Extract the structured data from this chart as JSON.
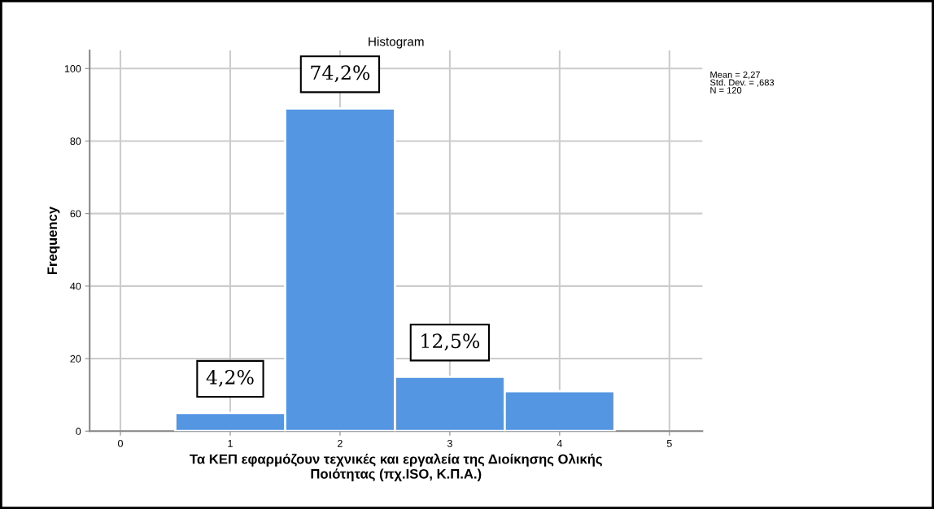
{
  "chart_data": {
    "type": "histogram",
    "title": "Histogram",
    "xlabel": "Τα ΚΕΠ εφαρμόζουν τεχνικές και εργαλεία της Διοίκησης Ολικής\nΠοιότητας (πχ.ISO, Κ.Π.Α.)",
    "ylabel": "Frequency",
    "bins": [
      0.5,
      1.5,
      2.5,
      3.5,
      4.5
    ],
    "values": [
      5,
      89,
      15,
      11
    ],
    "color": "#5596e3",
    "xlim": [
      -0.28,
      5.3
    ],
    "xticks": [
      0,
      1,
      2,
      3,
      4,
      5
    ],
    "ylim": [
      0,
      105
    ],
    "yticks": [
      0,
      20,
      40,
      60,
      80,
      100
    ],
    "grid": true,
    "annotations": [
      "Mean = 2,27\nStd. Dev. = ,683\nN = 120",
      "4,2%",
      "74,2%",
      "12,5%"
    ]
  }
}
